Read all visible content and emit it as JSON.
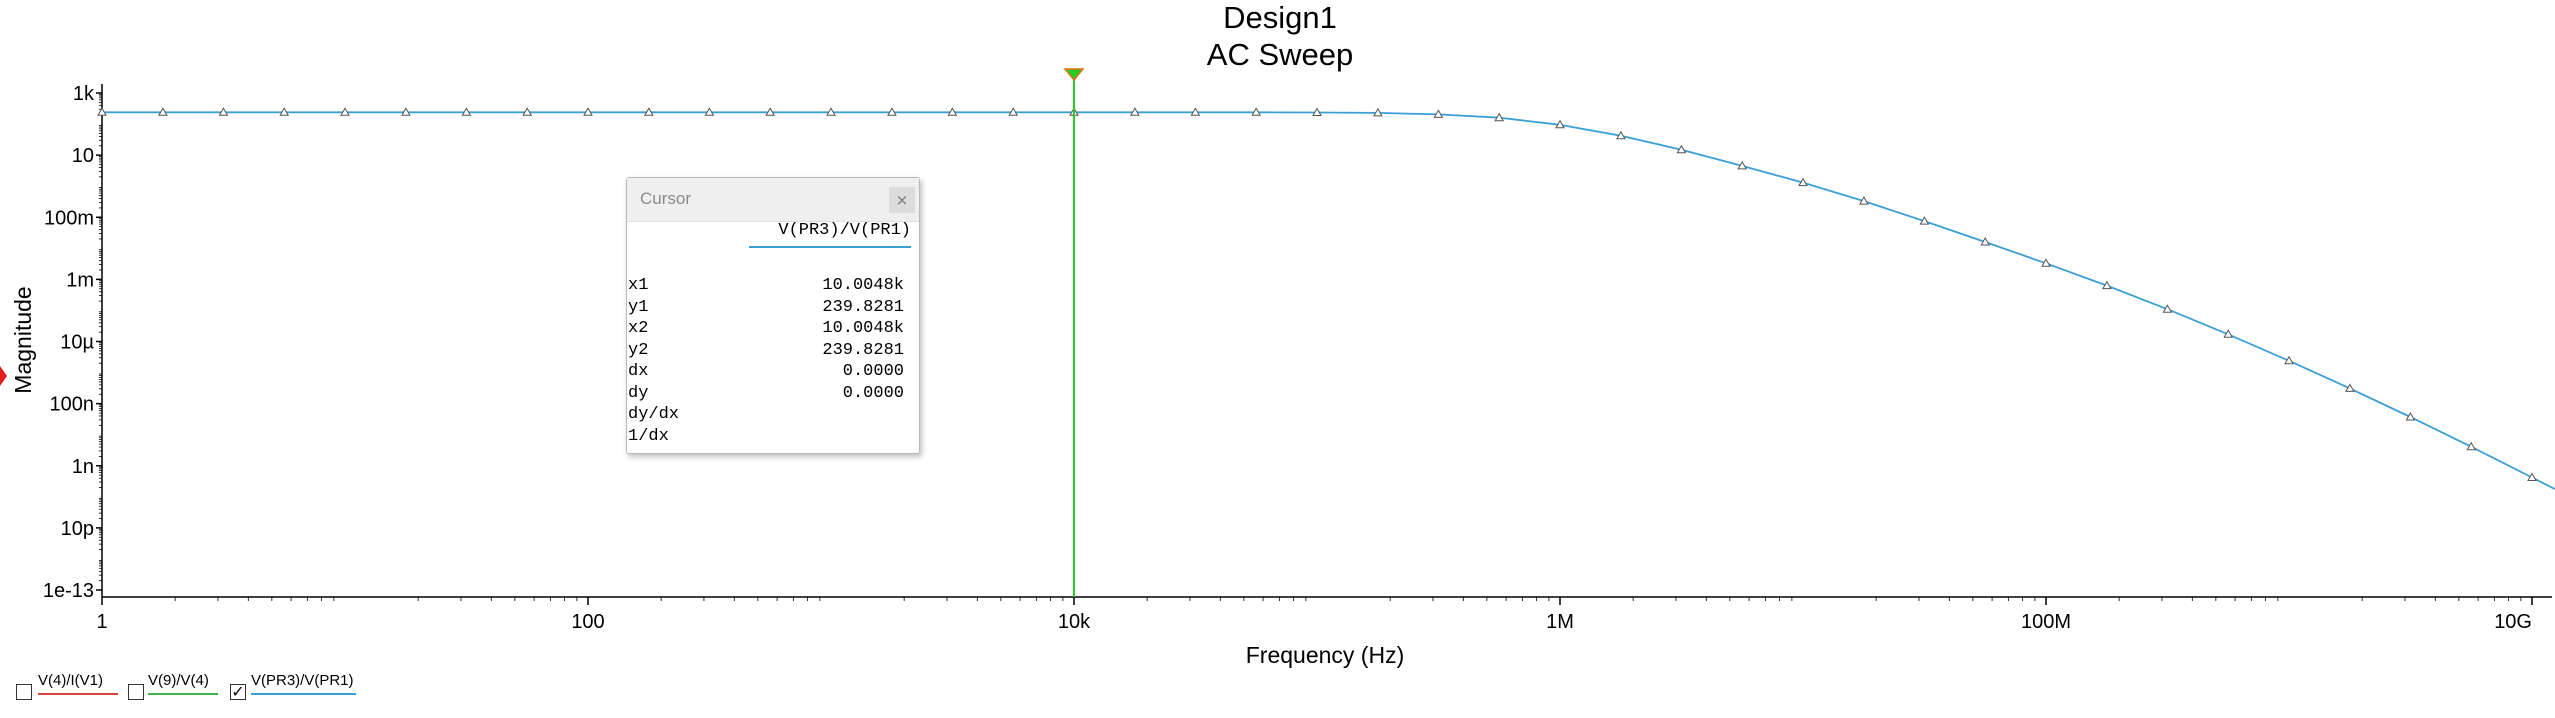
{
  "chart_data": {
    "type": "line",
    "title": "Design1",
    "subtitle": "AC Sweep",
    "xlabel": "Frequency (Hz)",
    "ylabel": "Magnitude",
    "x_scale": "log",
    "y_scale": "log",
    "xlim": [
      1,
      10000000000
    ],
    "ylim": [
      1e-13,
      3000
    ],
    "x_ticks": [
      {
        "value": 1,
        "label": "1"
      },
      {
        "value": 100,
        "label": "100"
      },
      {
        "value": 10000,
        "label": "10k"
      },
      {
        "value": 1000000,
        "label": "1M"
      },
      {
        "value": 100000000,
        "label": "100M"
      },
      {
        "value": 10000000000,
        "label": "10G"
      }
    ],
    "y_ticks": [
      {
        "value": 1000,
        "label": "1k"
      },
      {
        "value": 10,
        "label": "10"
      },
      {
        "value": 0.1,
        "label": "100m"
      },
      {
        "value": 0.001,
        "label": "1m"
      },
      {
        "value": 1e-05,
        "label": "10µ"
      },
      {
        "value": 1e-07,
        "label": "100n"
      },
      {
        "value": 1e-09,
        "label": "1n"
      },
      {
        "value": 1e-11,
        "label": "10p"
      },
      {
        "value": 1e-13,
        "label": "1e-13"
      }
    ],
    "grid": false,
    "series": [
      {
        "name": "V(PR3)/V(PR1)",
        "color": "#3a9fd6",
        "marker": "triangle",
        "x": [
          1,
          1.78,
          3.16,
          5.62,
          10,
          17.8,
          31.6,
          56.2,
          100,
          178,
          316,
          562,
          1000,
          1780,
          3160,
          5620,
          10000,
          17800,
          31600,
          56200,
          100000,
          178000,
          316000,
          562000,
          1000000,
          1780000,
          3160000,
          5620000,
          10000000,
          17800000,
          31600000,
          56200000,
          100000000,
          178000000,
          316000000,
          562000000,
          1000000000,
          1780000000,
          3160000000,
          5620000000,
          10000000000
        ],
        "y": [
          240,
          240,
          240,
          240,
          240,
          240,
          240,
          240,
          240,
          240,
          240,
          240,
          240,
          240,
          240,
          240,
          240,
          240,
          240,
          239,
          236,
          228,
          205,
          160,
          95,
          42,
          15,
          4.5,
          1.3,
          0.33,
          0.075,
          0.016,
          0.0033,
          0.00063,
          0.00011,
          1.7e-05,
          2.4e-06,
          3.1e-07,
          3.7e-08,
          4.1e-09,
          4.2e-10
        ]
      }
    ],
    "cursor": {
      "series": "V(PR3)/V(PR1)",
      "x": 10000,
      "color": "#22cc22"
    }
  },
  "cursor_window": {
    "title": "Cursor",
    "close_glyph": "×",
    "trace_name": "V(PR3)/V(PR1)",
    "rows": [
      {
        "name": "x1",
        "value": "10.0048k"
      },
      {
        "name": "y1",
        "value": "239.8281"
      },
      {
        "name": "x2",
        "value": "10.0048k"
      },
      {
        "name": "y2",
        "value": "239.8281"
      },
      {
        "name": "dx",
        "value": "0.0000"
      },
      {
        "name": "dy",
        "value": "0.0000"
      },
      {
        "name": "dy/dx",
        "value": ""
      },
      {
        "name": "1/dx",
        "value": ""
      }
    ]
  },
  "legend": {
    "items": [
      {
        "label": "V(4)/I(V1)",
        "color": "#d94040",
        "checked": false,
        "check_glyph": ""
      },
      {
        "label": "V(9)/V(4)",
        "color": "#3cb64a",
        "checked": false,
        "check_glyph": ""
      },
      {
        "label": "V(PR3)/V(PR1)",
        "color": "#3a9fd6",
        "checked": true,
        "check_glyph": "✓"
      }
    ]
  }
}
